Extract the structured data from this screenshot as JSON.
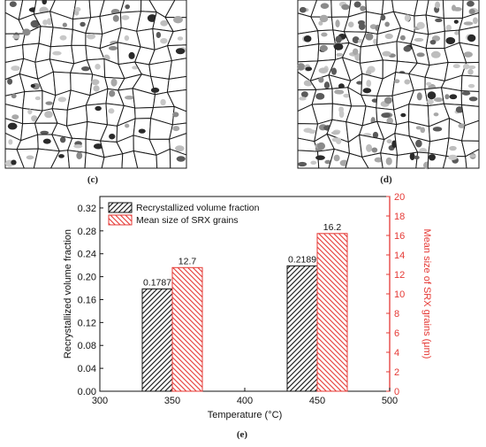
{
  "panels": {
    "c": "(c)",
    "d": "(d)",
    "e": "(e)"
  },
  "micrographs": [
    {
      "name": "grain-map-c",
      "grains": "gray shaded recrystallized grains on a white grain-boundary network"
    },
    {
      "name": "grain-map-d",
      "grains": "denser gray shaded recrystallized grains on a white grain-boundary network"
    }
  ],
  "chart_data": {
    "type": "bar",
    "xlabel": "Temperature (°C)",
    "xlim": [
      300,
      500
    ],
    "xticks": [
      "300",
      "350",
      "400",
      "450",
      "500"
    ],
    "ylabel": "Recrystallized volume fraction",
    "ylim": [
      0,
      0.34
    ],
    "yticks": [
      "0.00",
      "0.04",
      "0.08",
      "0.12",
      "0.16",
      "0.20",
      "0.24",
      "0.28",
      "0.32"
    ],
    "y2label": "Mean size of SRX grains (μm)",
    "y2lim": [
      0,
      20
    ],
    "y2ticks": [
      "0",
      "2",
      "4",
      "6",
      "8",
      "10",
      "12",
      "14",
      "16",
      "18",
      "20"
    ],
    "categories": [
      350,
      450
    ],
    "series": [
      {
        "name": "Recrystallized volume fraction",
        "axis": "left",
        "values": [
          0.1787,
          0.2189
        ],
        "labels": [
          "0.1787",
          "0.2189"
        ],
        "color": "#111111",
        "hatch": "black-diagonal"
      },
      {
        "name": "Mean size of SRX grains",
        "axis": "right",
        "values": [
          12.7,
          16.2
        ],
        "labels": [
          "12.7",
          "16.2"
        ],
        "color": "#e53935",
        "hatch": "red-diagonal"
      }
    ],
    "legend": "top-left",
    "grid": false,
    "right_axis_color": "#e53935"
  }
}
